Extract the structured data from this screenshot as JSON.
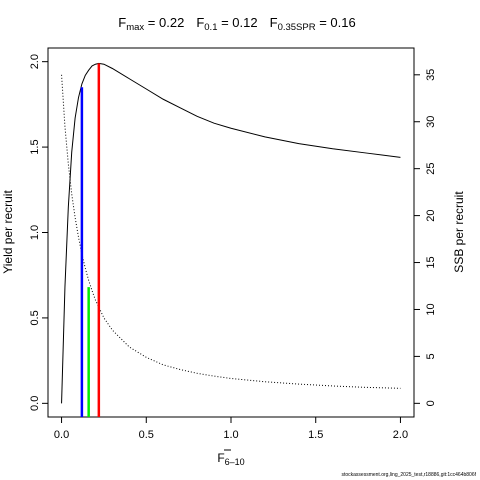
{
  "chart_data": {
    "type": "line",
    "title": {
      "fmax": {
        "base": "F",
        "sub": "max",
        "value": " = 0.22"
      },
      "f01": {
        "base": "F",
        "sub": "0.1",
        "value": " = 0.12"
      },
      "f35": {
        "base": "F",
        "sub": "0.35SPR",
        "value": " = 0.16"
      }
    },
    "xlabel": {
      "base": "F",
      "sub": "6–10"
    },
    "ylabel_left": "Yield per recruit",
    "ylabel_right": "SSB per recruit",
    "xlim": [
      -0.08,
      2.08
    ],
    "ylim_left": [
      -0.08,
      2.08
    ],
    "ylim_right": [
      -1.456,
      37.856
    ],
    "x_ticks": [
      0.0,
      0.5,
      1.0,
      1.5,
      2.0
    ],
    "x_tick_labels": [
      "0.0",
      "0.5",
      "1.0",
      "1.5",
      "2.0"
    ],
    "y_left_ticks": [
      0.0,
      0.5,
      1.0,
      1.5,
      2.0
    ],
    "y_left_tick_labels": [
      "0.0",
      "0.5",
      "1.0",
      "1.5",
      "2.0"
    ],
    "y_right_ticks": [
      0,
      5,
      10,
      15,
      20,
      25,
      30,
      35
    ],
    "y_right_tick_labels": [
      "0",
      "5",
      "10",
      "15",
      "20",
      "25",
      "30",
      "35"
    ],
    "series": [
      {
        "axis": "left",
        "style": "solid",
        "x": [
          0.0,
          0.02,
          0.04,
          0.06,
          0.08,
          0.1,
          0.12,
          0.14,
          0.16,
          0.18,
          0.2,
          0.22,
          0.25,
          0.3,
          0.4,
          0.5,
          0.6,
          0.7,
          0.8,
          0.9,
          1.0,
          1.2,
          1.4,
          1.6,
          1.8,
          2.0
        ],
        "y": [
          0.0,
          0.68,
          1.15,
          1.47,
          1.67,
          1.79,
          1.87,
          1.92,
          1.95,
          1.975,
          1.985,
          1.99,
          1.985,
          1.96,
          1.9,
          1.84,
          1.78,
          1.73,
          1.68,
          1.64,
          1.61,
          1.56,
          1.52,
          1.49,
          1.465,
          1.44
        ]
      },
      {
        "axis": "right",
        "style": "dotted",
        "x": [
          0.0,
          0.02,
          0.04,
          0.06,
          0.08,
          0.1,
          0.12,
          0.14,
          0.16,
          0.18,
          0.2,
          0.25,
          0.3,
          0.4,
          0.5,
          0.6,
          0.7,
          0.8,
          0.9,
          1.0,
          1.2,
          1.4,
          1.6,
          1.8,
          2.0
        ],
        "y": [
          35.0,
          29.5,
          25.5,
          22.3,
          19.8,
          17.7,
          15.9,
          14.4,
          13.1,
          12.0,
          11.0,
          9.1,
          7.8,
          6.0,
          4.9,
          4.1,
          3.6,
          3.2,
          2.9,
          2.65,
          2.3,
          2.05,
          1.85,
          1.7,
          1.6
        ]
      }
    ],
    "reference_lines": [
      {
        "label": "F0.1",
        "x": 0.12,
        "y": 1.85,
        "color": "#0000ff"
      },
      {
        "label": "F0.35SPR",
        "x": 0.16,
        "y": 0.68,
        "color": "#00ee00"
      },
      {
        "label": "Fmax",
        "x": 0.22,
        "y": 1.99,
        "color": "#ff0000"
      }
    ]
  },
  "footer": {
    "source_text": "stockassessment.org,ling_2025_test,r18886,git:1cc464b806f"
  }
}
